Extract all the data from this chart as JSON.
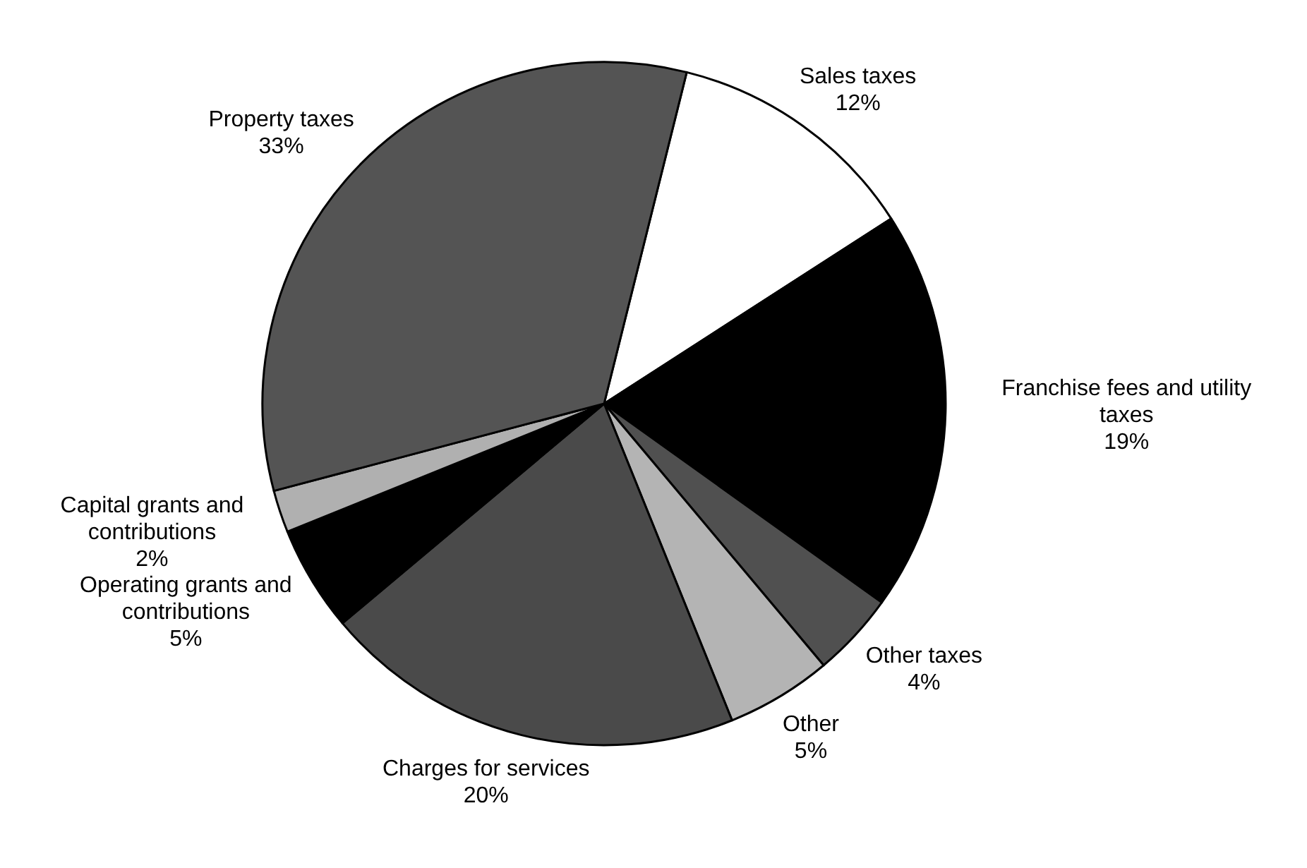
{
  "chart_data": {
    "type": "pie",
    "categories": [
      "Sales taxes",
      "Franchise fees and utility taxes",
      "Other taxes",
      "Other",
      "Charges for services",
      "Operating grants and contributions",
      "Capital grants and contributions",
      "Property taxes"
    ],
    "values": [
      12,
      19,
      4,
      5,
      20,
      5,
      2,
      33
    ],
    "colors": [
      "#ffffff",
      "#000000",
      "#505050",
      "#b4b4b4",
      "#4a4a4a",
      "#000000",
      "#b0b0b0",
      "#545454"
    ],
    "value_labels": [
      "12%",
      "19%",
      "4%",
      "5%",
      "20%",
      "5%",
      "2%",
      "33%"
    ]
  }
}
